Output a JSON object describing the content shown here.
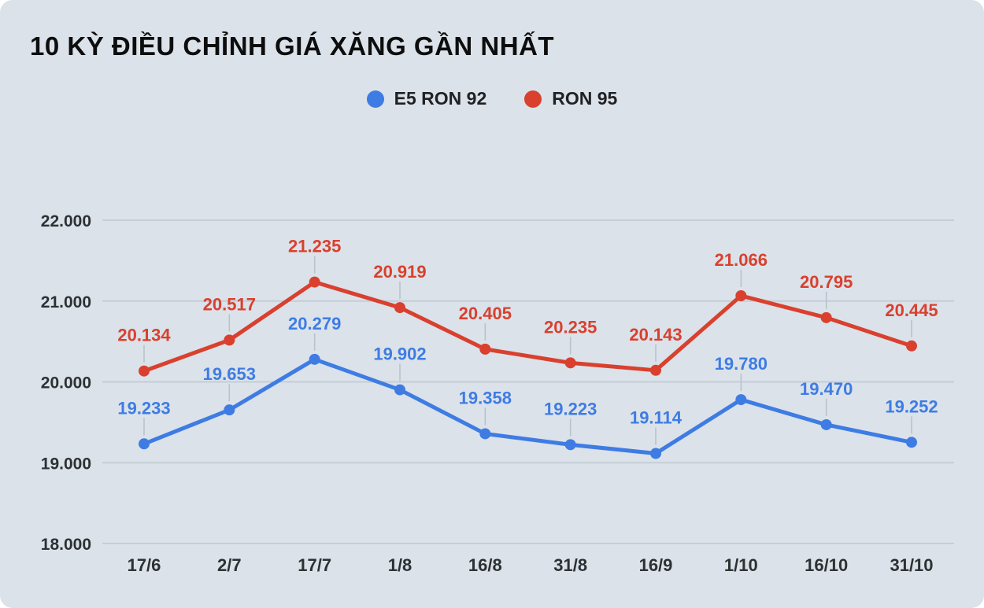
{
  "title": "10 KỲ ĐIỀU CHỈNH GIÁ XĂNG GẦN NHẤT",
  "colors": {
    "background": "#dbe2e9",
    "grid": "#c4ced6",
    "axis_text": "#2d3134",
    "connector": "#b7c1ca",
    "blue": "#3e7ce4",
    "red": "#d9402e"
  },
  "chart_data": {
    "type": "line",
    "title": "10 KỲ ĐIỀU CHỈNH GIÁ XĂNG GẦN NHẤT",
    "categories": [
      "17/6",
      "2/7",
      "17/7",
      "1/8",
      "16/8",
      "31/8",
      "16/9",
      "1/10",
      "16/10",
      "31/10"
    ],
    "series": [
      {
        "name": "E5 RON 92",
        "color": "#3e7ce4",
        "values": [
          19233,
          19653,
          20279,
          19902,
          19358,
          19223,
          19114,
          19780,
          19470,
          19252
        ],
        "labels": [
          "19.233",
          "19.653",
          "20.279",
          "19.902",
          "19.358",
          "19.223",
          "19.114",
          "19.780",
          "19.470",
          "19.252"
        ]
      },
      {
        "name": "RON 95",
        "color": "#d9402e",
        "values": [
          20134,
          20517,
          21235,
          20919,
          20405,
          20235,
          20143,
          21066,
          20795,
          20445
        ],
        "labels": [
          "20.134",
          "20.517",
          "21.235",
          "20.919",
          "20.405",
          "20.235",
          "20.143",
          "21.066",
          "20.795",
          "20.445"
        ]
      }
    ],
    "y_axis": {
      "min": 18000,
      "max": 22000,
      "ticks": [
        18000,
        19000,
        20000,
        21000,
        22000
      ],
      "tick_labels": [
        "18.000",
        "19.000",
        "20.000",
        "21.000",
        "22.000"
      ]
    },
    "xlabel": "",
    "ylabel": "",
    "grid": true,
    "legend_position": "top-center"
  }
}
